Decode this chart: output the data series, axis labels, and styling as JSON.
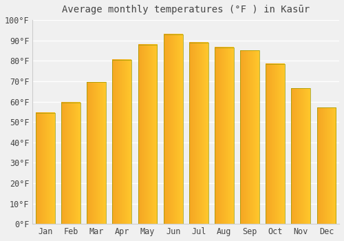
{
  "title": "Average monthly temperatures (°F ) in Kasūr",
  "months": [
    "Jan",
    "Feb",
    "Mar",
    "Apr",
    "May",
    "Jun",
    "Jul",
    "Aug",
    "Sep",
    "Oct",
    "Nov",
    "Dec"
  ],
  "values": [
    54.5,
    59.5,
    69.5,
    80.5,
    88.0,
    93.0,
    89.0,
    86.5,
    85.0,
    78.5,
    66.5,
    57.0
  ],
  "bar_color_left": "#F5A623",
  "bar_color_right": "#FFC72C",
  "bar_color_top": "#FFD860",
  "background_color": "#f0f0f0",
  "grid_color": "#ffffff",
  "ylim": [
    0,
    100
  ],
  "yticks": [
    0,
    10,
    20,
    30,
    40,
    50,
    60,
    70,
    80,
    90,
    100
  ],
  "ytick_labels": [
    "0°F",
    "10°F",
    "20°F",
    "30°F",
    "40°F",
    "50°F",
    "60°F",
    "70°F",
    "80°F",
    "90°F",
    "100°F"
  ],
  "title_fontsize": 10,
  "tick_fontsize": 8.5,
  "font_color": "#444444",
  "bar_width": 0.75,
  "bar_edge_color": "#888800",
  "bar_edge_width": 0.5
}
